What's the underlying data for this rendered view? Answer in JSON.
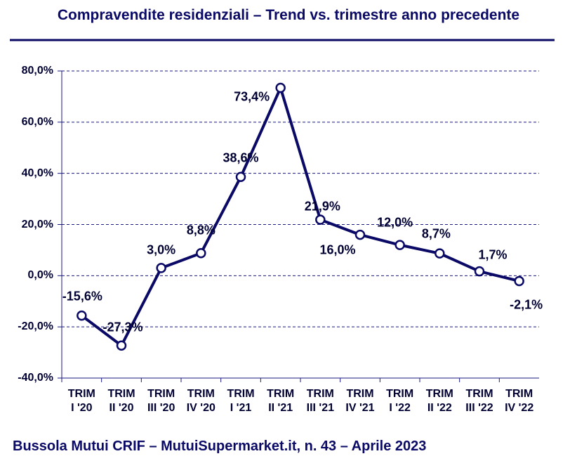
{
  "chart_data": {
    "type": "line",
    "title": "Compravendite residenziali – Trend vs. trimestre anno precedente",
    "footer": "Bussola Mutui CRIF – MutuiSupermarket.it, n. 43 – Aprile 2023",
    "categories": [
      "TRIM I '20",
      "TRIM II '20",
      "TRIM III '20",
      "TRIM IV '20",
      "TRIM I '21",
      "TRIM II '21",
      "TRIM III '21",
      "TRIM IV '21",
      "TRIM I '22",
      "TRIM II '22",
      "TRIM III '22",
      "TRIM IV '22"
    ],
    "values": [
      -15.6,
      -27.3,
      3.0,
      8.8,
      38.6,
      73.4,
      21.9,
      16.0,
      12.0,
      8.7,
      1.7,
      -2.1
    ],
    "value_labels": [
      "-15,6%",
      "-27,3%",
      "3,0%",
      "8,8%",
      "38,6%",
      "73,4%",
      "21,9%",
      "16,0%",
      "12,0%",
      "8,7%",
      "1,7%",
      "-2,1%"
    ],
    "color": "#0a0a66",
    "ylim": [
      -40,
      80
    ],
    "yticks": [
      {
        "value": -40,
        "label": "-40,0%"
      },
      {
        "value": -20,
        "label": "-20,0%"
      },
      {
        "value": 0,
        "label": "0,0%"
      },
      {
        "value": 20,
        "label": "20,0%"
      },
      {
        "value": 40,
        "label": "40,0%"
      },
      {
        "value": 60,
        "label": "60,0%"
      },
      {
        "value": 80,
        "label": "80,0%"
      }
    ],
    "grid": true
  }
}
